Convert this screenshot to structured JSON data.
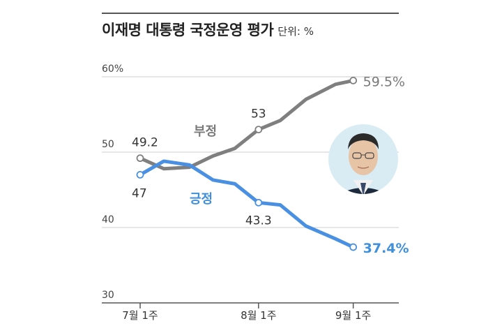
{
  "header": {
    "title": "이재명 대통령 국정운영 평가",
    "unit": "단위: %"
  },
  "colors": {
    "negative": "#7f7f7f",
    "positive": "#4a90e2",
    "grid": "#cccccc",
    "axis": "#555555"
  },
  "icons": {
    "portrait": "president-portrait"
  },
  "chart_data": {
    "type": "line",
    "title": "이재명 대통령 국정운영 평가",
    "unit": "%",
    "ylim": [
      30,
      62
    ],
    "y_ticks": [
      60,
      50,
      40,
      30
    ],
    "y_tick_labels": [
      "60%",
      "50",
      "40",
      "30"
    ],
    "x_tick_labels": [
      {
        "x": 0,
        "label": "7월 1주"
      },
      {
        "x": 6,
        "label": "8월 1주"
      },
      {
        "x": 10.8,
        "label": "9월 1주"
      }
    ],
    "grid": "horizontal",
    "series": [
      {
        "name": "부정",
        "color": "#7f7f7f",
        "x": [
          0,
          1.2,
          2.5,
          3.7,
          4.8,
          6,
          7.1,
          8.4,
          9.9,
          10.8
        ],
        "values": [
          49.2,
          47.8,
          48.0,
          49.5,
          50.5,
          53.0,
          54.2,
          57.0,
          59.0,
          59.5
        ],
        "labeled_points": [
          {
            "index": 0,
            "label": "49.2"
          },
          {
            "index": 5,
            "label": "53"
          },
          {
            "index": 9,
            "label": "59.5%"
          }
        ]
      },
      {
        "name": "긍정",
        "color": "#4a90e2",
        "x": [
          0,
          1.2,
          2.5,
          3.7,
          4.8,
          6,
          7.1,
          8.4,
          9.9,
          10.8
        ],
        "values": [
          47.0,
          48.8,
          48.3,
          46.3,
          45.8,
          43.3,
          43.0,
          40.2,
          38.5,
          37.4
        ],
        "labeled_points": [
          {
            "index": 0,
            "label": "47"
          },
          {
            "index": 5,
            "label": "43.3"
          },
          {
            "index": 9,
            "label": "37.4%"
          }
        ]
      }
    ]
  }
}
